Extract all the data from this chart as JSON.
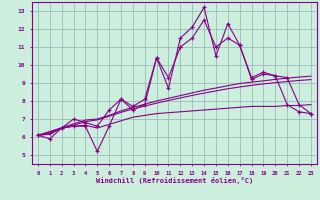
{
  "xlabel": "Windchill (Refroidissement éolien,°C)",
  "bg_color": "#cceedd",
  "grid_color": "#99bbbb",
  "line_color": "#880088",
  "x_hours": [
    0,
    1,
    2,
    3,
    4,
    5,
    6,
    7,
    8,
    9,
    10,
    11,
    12,
    13,
    14,
    15,
    16,
    17,
    18,
    19,
    20,
    21,
    22,
    23
  ],
  "series_main": [
    6.1,
    5.9,
    6.5,
    6.6,
    6.6,
    5.2,
    6.6,
    8.1,
    7.5,
    7.8,
    10.4,
    8.7,
    11.5,
    12.1,
    13.2,
    10.5,
    12.3,
    11.1,
    9.3,
    9.6,
    9.4,
    7.8,
    7.4,
    7.3
  ],
  "series_smooth": [
    6.1,
    6.2,
    6.5,
    7.0,
    6.8,
    6.6,
    7.5,
    8.1,
    7.7,
    8.1,
    10.4,
    9.3,
    11.0,
    11.5,
    12.5,
    11.0,
    11.5,
    11.1,
    9.2,
    9.5,
    9.4,
    9.3,
    7.8,
    7.3
  ],
  "series_flat": [
    6.1,
    6.15,
    6.5,
    6.6,
    6.65,
    6.5,
    6.7,
    6.9,
    7.1,
    7.2,
    7.3,
    7.35,
    7.4,
    7.45,
    7.5,
    7.55,
    7.6,
    7.65,
    7.7,
    7.7,
    7.7,
    7.75,
    7.75,
    7.8
  ],
  "linear1": [
    6.1,
    6.3,
    6.52,
    6.73,
    6.94,
    7.0,
    7.2,
    7.45,
    7.65,
    7.82,
    8.0,
    8.15,
    8.3,
    8.45,
    8.6,
    8.72,
    8.85,
    8.97,
    9.05,
    9.12,
    9.2,
    9.27,
    9.33,
    9.38
  ],
  "linear2": [
    6.1,
    6.28,
    6.47,
    6.66,
    6.85,
    6.95,
    7.15,
    7.37,
    7.56,
    7.72,
    7.88,
    8.03,
    8.17,
    8.31,
    8.44,
    8.56,
    8.68,
    8.78,
    8.87,
    8.95,
    9.02,
    9.08,
    9.14,
    9.19
  ],
  "ylim": [
    4.5,
    13.5
  ],
  "yticks": [
    5,
    6,
    7,
    8,
    9,
    10,
    11,
    12,
    13
  ],
  "xticks": [
    0,
    1,
    2,
    3,
    4,
    5,
    6,
    7,
    8,
    9,
    10,
    11,
    12,
    13,
    14,
    15,
    16,
    17,
    18,
    19,
    20,
    21,
    22,
    23
  ]
}
